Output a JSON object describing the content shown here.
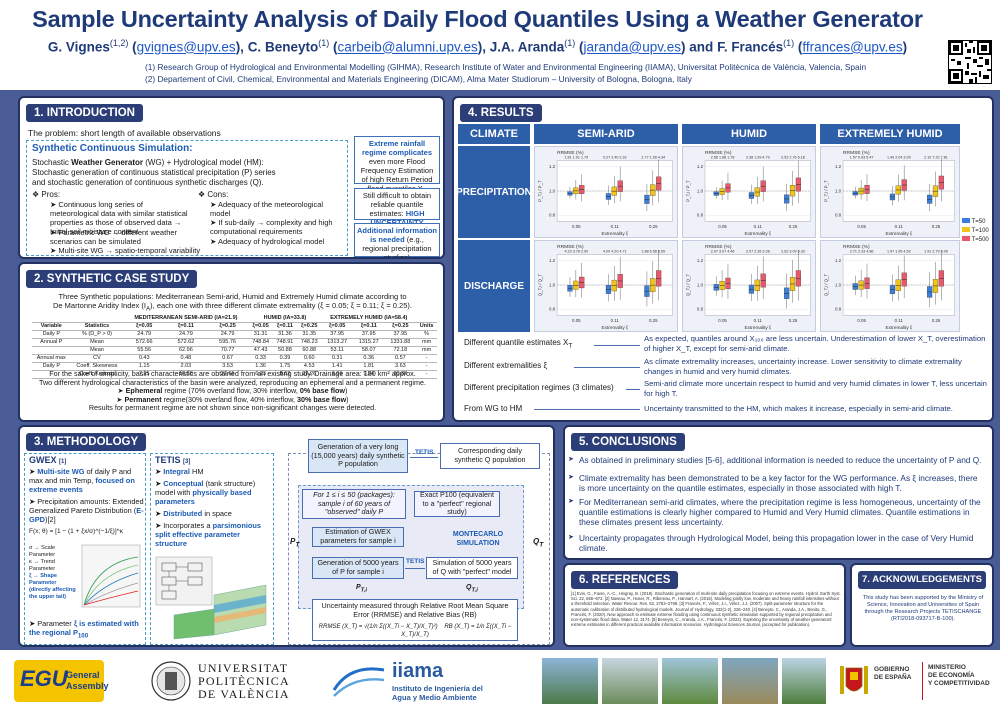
{
  "header": {
    "title": "Sample Uncertainty Analysis of Daily Flood Quantiles Using a Weather Generator",
    "authors": [
      {
        "name": "G. Vignes",
        "sup": "(1,2)",
        "email": "gvignes@upv.es"
      },
      {
        "name": "C. Beneyto",
        "sup": "(1)",
        "email": "carbeib@alumni.upv.es"
      },
      {
        "name": "J.A. Aranda",
        "sup": "(1)",
        "email": "jaranda@upv.es"
      },
      {
        "name": "F. Francés",
        "sup": "(1)",
        "email": "ffrances@upv.es"
      }
    ],
    "and": "and",
    "affiliations": [
      "(1)   Research Group of Hydrological and Environmental Modelling (GIHMA), Research Institute of Water and Environmental Engineering (IIAMA), Universitat Politècnica de València, Valencia, Spain",
      "(2)   Departement of Civil, Chemical, Environmental and Materials Engineering (DICAM), Alma Mater Studiorum – University of Bologna, Bologna, Italy"
    ]
  },
  "intro": {
    "heading": "1. INTRODUCTION",
    "problem": "The problem: short length of available observations",
    "scs_title": "Synthetic Continuous Simulation:",
    "scs_line1a": "Stochastic ",
    "scs_line1b": "Weather Generator",
    "scs_line1c": " (WG) + Hydrological model (HM):",
    "scs_line2": "Stochastic generation of continuous statistical precipitation (P) series",
    "scs_line3": "and stochastic generation of continuous synthetic discharges (Q).",
    "pros_title": "❖ Pros:",
    "pros": [
      "Continuous long series of meteorological data with similar statistical properties as those of observed data → Initial soil moisture content",
      "Parametric WG → different weather scenarios can be simulated",
      "Multi-site WG → spatio-temporal variability"
    ],
    "cons_title": "❖ Cons:",
    "cons": [
      "Adequacy of the meteorological model",
      "If sub-daily → complexity and high computational requirements",
      "Adequacy of hydrological model"
    ],
    "box1_title": "Extreme rainfall regime complicates",
    "box1_rest": "even more Flood Frequency Estimation of high Return Period flood quantiles X",
    "box1_sub": "T",
    "box2": "Still difficult to obtain reliable quantile estimates:",
    "box2_b": "HIGH UNCERTAINTY",
    "box3_b": "Additional information is needed",
    "box3": "(e.g., regional precipitation studies)"
  },
  "synth": {
    "heading": "2. SYNTHETIC CASE STUDY",
    "line1": "Three Synthetic populations: Mediterranean Semi-arid, Humid and Extremely Humid climate according to",
    "line2": "De Martonne Aridity Index (I",
    "line2b": "), each one with three different climate extremality (ξ = 0.05; ξ = 0.11; ξ = 0.25).",
    "table_groups": [
      "MEDITERRANEAN SEMI-ARID (IA=21.9)",
      "HUMID (IA=33.8)",
      "EXTREMELY HUMID (IA=58.4)"
    ],
    "table_head": [
      "Variable",
      "Statistics",
      "ξ=0.05",
      "ξ=0.11",
      "ξ=0.25",
      "ξ=0.05",
      "ξ=0.11",
      "ξ=0.25",
      "ξ=0.05",
      "ξ=0.11",
      "ξ=0.25",
      "Units"
    ],
    "table_rows": [
      [
        "Daily P",
        "% (D_P > 0)",
        "24.79",
        "24.79",
        "24.79",
        "31.31",
        "31.36",
        "31.35",
        "37.95",
        "37.95",
        "37.95",
        "%"
      ],
      [
        "Annual P",
        "Mean",
        "572.66",
        "572.62",
        "595.76",
        "748.84",
        "748.91",
        "748.23",
        "1313.27",
        "1315.27",
        "1331.88",
        "mm"
      ],
      [
        "",
        "Mean",
        "55.56",
        "62.96",
        "70.77",
        "47.43",
        "50.88",
        "60.88",
        "53.11",
        "58.07",
        "72.18",
        "mm"
      ],
      [
        "Annual max",
        "CV",
        "0.43",
        "0.48",
        "0.67",
        "0.33",
        "0.39",
        "0.60",
        "0.31",
        "0.36",
        "0.57",
        "-"
      ],
      [
        "Daily P",
        "Coeff. Skewness",
        "1.15",
        "2.03",
        "3.53",
        "1.36",
        "1.75",
        "4.53",
        "1.41",
        "1.81",
        "3.63",
        "-"
      ],
      [
        "",
        "Coeff. Kurtosis",
        "7.25",
        "10.68",
        "27.61",
        "6.23",
        "8.62",
        "32.26",
        "6.01",
        "9.54",
        "30.82",
        "-"
      ]
    ],
    "note1": "For the sake of simplicity, basin characteristics are obtained from an existing study. Drainage area: 180 km² approx.",
    "note2": "Two different hydrological characteristics of the basin were analyzed, reproducing an ephemeral and a permanent regime.",
    "eph_b": "Ephemeral",
    "eph": " regime (70% overland flow, 30% interflow, ",
    "eph_b2": "0% base flow",
    "eph_end": ")",
    "perm_b": "Permanent",
    "perm": " regime(30% overland flow, 40% interflow, ",
    "perm_b2": "30% base flow",
    "perm_end": ")",
    "note3": "Results for permanent regime are not shown since non-significant changes were detected."
  },
  "method": {
    "heading": "3. METHODOLOGY",
    "gwex_title": "GWEX",
    "gwex_cite": "[1]",
    "gwex1_b": "Multi-site WG",
    "gwex1": " of daily P and max and min Temp,",
    "gwex1_b2": " focused on extreme events",
    "gwex2": "Precipitation amounts: Extended Generalized Pareto Distribution (",
    "gwex2_b": "E-GPD",
    "gwex2_end": ")[2]",
    "formula": "F(x; θ) = [1 − (1 + ξx/σ)^(−1/ξ)]^κ",
    "legend1": "σ → Scale Parameter",
    "legend2": "κ → Trend Parameter",
    "legend3": "ξ → Shape Parameter (directly affecting the upper tail)",
    "gwex3a": "Parameter ",
    "gwex3b": "ξ is estimated with the regional P",
    "gwex3sub": "100",
    "tetis_title": "TETIS",
    "tetis_cite": "[3]",
    "tetis": [
      {
        "b": "Integral",
        "t": " HM"
      },
      {
        "b": "Conceptual",
        "t": " (tank structure) model with ",
        "b2": "physically based parameters"
      },
      {
        "b": "Distributed",
        "t": " in space"
      },
      {
        "t": "Incorporates a ",
        "b": "parsimonious split effective parameter structure"
      }
    ],
    "flow": {
      "f1": "Generation of a very long (15,000 years) daily synthetic P population",
      "tetis_lbl": "TETIS",
      "f2": "Corresponding daily synthetic Q population",
      "f3": "For 1 ≤ i ≤ 50 (packages): sample i of 60 years of \"observed\" daily P",
      "f4": "Exact P100 (equivalent to a \"perfect\" regional study)",
      "f5": "Estimation of GWEX parameters for sample i",
      "mc": "MONTECARLO SIMULATION",
      "f6": "Generation of 5000 years of P for sample i",
      "f7": "Simulation of 5000 years of Q with \"perfect\" model",
      "f8": "Uncertainty measured through Relative Root Mean Square Error (RRMSE) and Relative Bias (RB)",
      "pt": "P",
      "pt_sub": "T",
      "qt": "Q",
      "qt_sub": "T",
      "pti": "P",
      "pti_sub": "T,i",
      "qti": "Q",
      "qti_sub": "T,i",
      "rrmse": "RRMSE (X_T) = √(1/n Σ((X_Ti − X_T)/X_T)²)",
      "rb": "RB (X_T) = 1/n Σ((X_Ti − X_T)/X_T)"
    }
  },
  "results": {
    "heading": "4. RESULTS",
    "climate_lbl": "CLIMATE",
    "cols": [
      "SEMI-ARID",
      "HUMID",
      "EXTREMELY HUMID"
    ],
    "rows": [
      "PRECIPITATION",
      "DISCHARGE"
    ],
    "rrmse_lbl": "RRMSE (%)",
    "x_axis": "Extremality ξ",
    "y_prec": "P_T,i / P_T",
    "y_dis": "Q_T,i / Q_T",
    "xticks": [
      "0.05",
      "0.11",
      "0.25"
    ],
    "yticks": [
      "1.2",
      "1.0",
      "0.8"
    ],
    "legend": [
      "T=50",
      "T=100",
      "T=500"
    ],
    "legend_colors": [
      "#3b7fd9",
      "#f0c419",
      "#e85a6a"
    ],
    "rrmse_vals": {
      "prec": [
        [
          "1.81",
          "1.91",
          "1.79",
          "0.27",
          "2.40",
          "2.32",
          "2.77",
          "1.99",
          "4.34"
        ],
        [
          "2.56",
          "1.68",
          "1.78",
          "2.38",
          "1.99",
          "4.79",
          "2.52",
          "2.76",
          "6.18"
        ],
        [
          "1.57",
          "0.93",
          "5.47",
          "1.49",
          "2.04",
          "3.99",
          "2.10",
          "7.22",
          "7.81"
        ]
      ],
      "dis": [
        [
          "4.23",
          "3.78",
          "2.90",
          "4.00",
          "4.20",
          "4.71",
          "1.88",
          "6.58",
          "6.59"
        ],
        [
          "2.07",
          "3.07",
          "4.46",
          "2.07",
          "2.35",
          "3.28",
          "2.62",
          "3.09",
          "5.33"
        ],
        [
          "2.71",
          "2.33",
          "4.86",
          "1.97",
          "1.95",
          "4.52",
          "1.91",
          "2.79",
          "5.06"
        ]
      ]
    },
    "chart_data": {
      "type": "box",
      "x_label": "Extremality ξ",
      "categories": [
        "0.05",
        "0.11",
        "0.25"
      ],
      "series": [
        {
          "name": "T=50"
        },
        {
          "name": "T=100"
        },
        {
          "name": "T=500"
        }
      ],
      "ylim": [
        0.8,
        1.2
      ]
    },
    "findings": [
      {
        "l": "Different quantile estimates X",
        "lsub": "T",
        "r": "As expected, quantiles around X₁₀₀ are less uncertain. Underestimation of lower X_T, overestimation of higher X_T, except for semi-arid climate."
      },
      {
        "l": "Different extremalities ξ",
        "r": "As climate extremality increases, uncertainty increase. Lower sensitivity to climate extremality changes in humid and very humid climates."
      },
      {
        "l": "Different precipitation regimes (3 climates)",
        "r": "Semi-arid climate more uncertain respect to humid and very humid climates in lower T, less uncertain for high T."
      },
      {
        "l": "From WG to HM",
        "r": "Uncertainty transmitted to the HM, which makes it increase, especially in semi-arid climate."
      }
    ]
  },
  "conclusions": {
    "heading": "5. CONCLUSIONS",
    "items": [
      "As obtained in preliminary studies [5-6], additional information is needed to reduce the uncertainty of P and Q.",
      "Climate extremality has been demonstrated to be a key factor for the WG performance. As ξ increases, there is more uncertainty on the quantile estimates, especially in those associated with high T.",
      "For Mediterranean semi-arid climates, where the precipitation regime is less homogeneous, uncertainty of the quantile estimations is clearly higher compared to Humid and Very Humid climates. Quantile estimations in these climates present less uncertainty.",
      "Uncertainty propagates through Hydrological Model, being this propagation lower in the case of Very Humid climate."
    ]
  },
  "references": {
    "heading": "6. REFERENCES",
    "text": "[1] Evin, G., Favre, A.-C., Hingray, B. (2018). Stochastic generation of multi-site daily precipitation focusing on extreme events. Hydrol. Earth Syst. Sci. 22, 655–672. [2] Naveau, P., Huser, R., Ribereau, P., Hannart, A. (2016). Modeling jointly low, moderate and heavy rainfall intensities without a threshold selection. Water Resour. Res. 52, 2753–2769. [3] Francés, F., Vélez, J.I., Vélez, J.J. (2007). Split-parameter structure for the automatic calibration of distributed hydrological models. Journal of Hydrology, 332(1-2), 226–240. [4] Beneyto, C., Aranda, J.A., Benito, G., Francés, F. (2020). New approach to estimate extreme flooding using continuous synthetic simulation supported by regional precipitation and non-systematic flood data. Water 12, 3174. [5] Beneyto, C., Aranda, J.A., Francés, F. (2023). Exploring the uncertainty of weather generators' extreme estimates in different practical available information scenarios. Hydrological Sciences Journal, (accepted for publication)."
  },
  "ack": {
    "heading": "7. ACKNOWLEDGEMENTS",
    "text": "This study has been supported by the Ministry of Science, Innovation and Universities of Spain through the Research Projects TETISCHANGE (RTI2018-093717-B-100)."
  },
  "footer": {
    "egu": "EGU",
    "egu_sub1": "General",
    "egu_sub2": "Assembly",
    "upv1": "UNIVERSITAT",
    "upv2": "POLITÈCNICA",
    "upv3": "DE VALÈNCIA",
    "iiama": "iiama",
    "iiama_sub1": "Instituto de Ingeniería del",
    "iiama_sub2": "Agua y Medio Ambiente",
    "gob1": "GOBIERNO",
    "gob2": "DE ESPAÑA",
    "min1": "MINISTERIO",
    "min2": "DE ECONOMÍA",
    "min3": "Y COMPETITIVIDAD"
  }
}
